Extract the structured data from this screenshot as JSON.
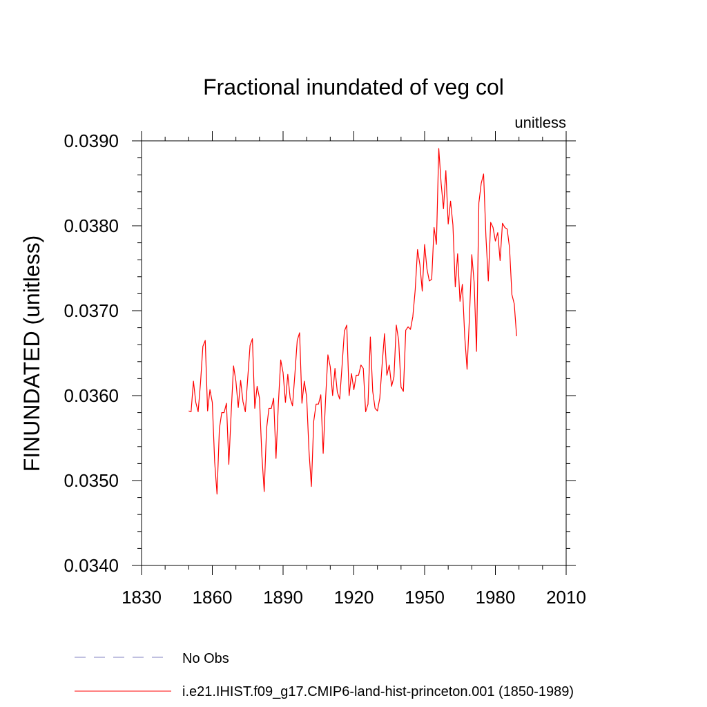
{
  "chart_data": {
    "type": "line",
    "title": "Fractional inundated of veg col",
    "units_label": "unitless",
    "xlabel": "",
    "ylabel": "FINUNDATED  (unitless)",
    "xlim": [
      1830,
      2010
    ],
    "ylim": [
      0.034,
      0.039
    ],
    "x_ticks": [
      1830,
      1860,
      1890,
      1920,
      1950,
      1980,
      2010
    ],
    "y_ticks": [
      0.034,
      0.035,
      0.036,
      0.037,
      0.038,
      0.039
    ],
    "y_tick_labels": [
      "0.0340",
      "0.0350",
      "0.0360",
      "0.0370",
      "0.0380",
      "0.0390"
    ],
    "grid": false,
    "legend_position": "bottom",
    "colors": {
      "model_series": "#ff0000",
      "obs_series": "#8080c0"
    },
    "series": [
      {
        "name": "No Obs",
        "style": "dashed",
        "x": [],
        "y": []
      },
      {
        "name": "i.e21.IHIST.f09_g17.CMIP6-land-hist-princeton.001 (1850-1989)",
        "style": "solid",
        "x": [
          1850,
          1851,
          1852,
          1853,
          1854,
          1855,
          1856,
          1857,
          1858,
          1859,
          1860,
          1861,
          1862,
          1863,
          1864,
          1865,
          1866,
          1867,
          1868,
          1869,
          1870,
          1871,
          1872,
          1873,
          1874,
          1875,
          1876,
          1877,
          1878,
          1879,
          1880,
          1881,
          1882,
          1883,
          1884,
          1885,
          1886,
          1887,
          1888,
          1889,
          1890,
          1891,
          1892,
          1893,
          1894,
          1895,
          1896,
          1897,
          1898,
          1899,
          1900,
          1901,
          1902,
          1903,
          1904,
          1905,
          1906,
          1907,
          1908,
          1909,
          1910,
          1911,
          1912,
          1913,
          1914,
          1915,
          1916,
          1917,
          1918,
          1919,
          1920,
          1921,
          1922,
          1923,
          1924,
          1925,
          1926,
          1927,
          1928,
          1929,
          1930,
          1931,
          1932,
          1933,
          1934,
          1935,
          1936,
          1937,
          1938,
          1939,
          1940,
          1941,
          1942,
          1943,
          1944,
          1945,
          1946,
          1947,
          1948,
          1949,
          1950,
          1951,
          1952,
          1953,
          1954,
          1955,
          1956,
          1957,
          1958,
          1959,
          1960,
          1961,
          1962,
          1963,
          1964,
          1965,
          1966,
          1967,
          1968,
          1969,
          1970,
          1971,
          1972,
          1973,
          1974,
          1975,
          1976,
          1977,
          1978,
          1979,
          1980,
          1981,
          1982,
          1983,
          1984,
          1985,
          1986,
          1987,
          1988,
          1989
        ],
        "y": [
          0.03582,
          0.03581,
          0.03617,
          0.03592,
          0.03581,
          0.03615,
          0.03658,
          0.03665,
          0.03582,
          0.03607,
          0.03592,
          0.03522,
          0.03484,
          0.03561,
          0.0358,
          0.0358,
          0.03591,
          0.03519,
          0.0358,
          0.03635,
          0.03617,
          0.03586,
          0.03618,
          0.03593,
          0.03581,
          0.0362,
          0.03659,
          0.03667,
          0.03585,
          0.03611,
          0.03597,
          0.0353,
          0.03487,
          0.03561,
          0.03585,
          0.03585,
          0.03597,
          0.03526,
          0.0359,
          0.03642,
          0.03627,
          0.03592,
          0.03625,
          0.03597,
          0.03588,
          0.03625,
          0.03665,
          0.03674,
          0.03591,
          0.03617,
          0.03598,
          0.03534,
          0.03493,
          0.0357,
          0.0359,
          0.0359,
          0.03601,
          0.03532,
          0.03595,
          0.03648,
          0.03634,
          0.036,
          0.03632,
          0.03604,
          0.03596,
          0.03635,
          0.03676,
          0.03683,
          0.036,
          0.03626,
          0.03607,
          0.03624,
          0.03624,
          0.03636,
          0.03632,
          0.03581,
          0.0359,
          0.03669,
          0.03605,
          0.03585,
          0.03582,
          0.03597,
          0.03637,
          0.03673,
          0.03624,
          0.03636,
          0.03611,
          0.03622,
          0.03683,
          0.03665,
          0.0361,
          0.03605,
          0.03677,
          0.03681,
          0.03678,
          0.03693,
          0.03724,
          0.03772,
          0.03754,
          0.03723,
          0.03778,
          0.03749,
          0.03735,
          0.03737,
          0.03798,
          0.03778,
          0.03891,
          0.0385,
          0.0382,
          0.03865,
          0.03802,
          0.03829,
          0.03801,
          0.03728,
          0.03767,
          0.03711,
          0.03731,
          0.0367,
          0.03631,
          0.03692,
          0.03766,
          0.03733,
          0.03652,
          0.03827,
          0.0385,
          0.03861,
          0.03787,
          0.03735,
          0.03804,
          0.03798,
          0.03782,
          0.03792,
          0.03759,
          0.03803,
          0.03798,
          0.03796,
          0.03774,
          0.03719,
          0.03708,
          0.0367
        ]
      }
    ]
  }
}
